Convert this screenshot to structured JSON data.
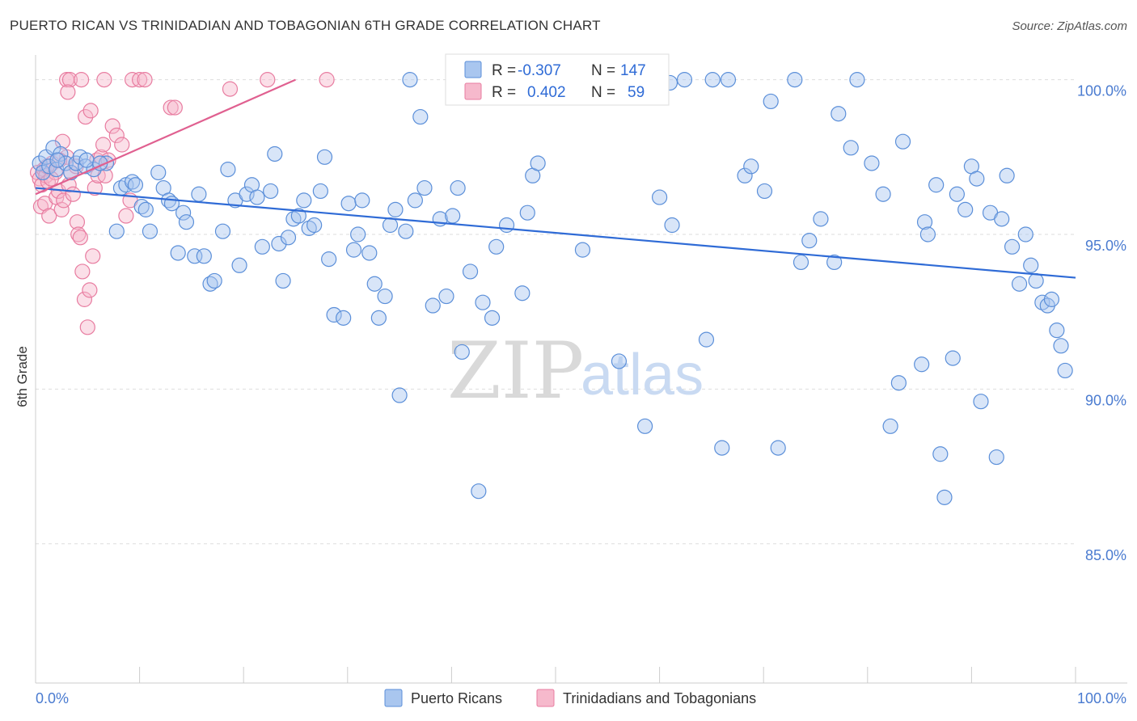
{
  "title": "PUERTO RICAN VS TRINIDADIAN AND TOBAGONIAN 6TH GRADE CORRELATION CHART",
  "source": "Source: ZipAtlas.com",
  "watermark": {
    "zip": "ZIP",
    "atlas": "atlas"
  },
  "colors": {
    "blue_fill": "#a9c6ef",
    "blue_stroke": "#5b8fd9",
    "blue_line": "#2f6bd6",
    "pink_fill": "#f6b9cc",
    "pink_stroke": "#e87ca0",
    "pink_line": "#e06090",
    "grid": "#dddddd",
    "tick_text": "#4a7bd0"
  },
  "legend": {
    "r_label": "R =",
    "n_label": "N =",
    "series": [
      {
        "r": "-0.307",
        "n": "147"
      },
      {
        "r": "0.402",
        "n": "59"
      }
    ]
  },
  "chart_data": {
    "type": "scatter",
    "title": "PUERTO RICAN VS TRINIDADIAN AND TOBAGONIAN 6TH GRADE CORRELATION CHART",
    "xlabel": "",
    "ylabel": "6th Grade",
    "xlim": [
      0,
      100
    ],
    "ylim": [
      80.5,
      100.8
    ],
    "y_ticks": [
      85,
      90,
      95,
      100
    ],
    "y_tick_labels": [
      "85.0%",
      "90.0%",
      "95.0%",
      "100.0%"
    ],
    "x_tick_labels": [
      "0.0%",
      "100.0%"
    ],
    "grid": true,
    "legend_position": "top-center",
    "series": [
      {
        "name": "Puerto Ricans",
        "color": "#5b8fd9",
        "trend": {
          "x": [
            0,
            100
          ],
          "y": [
            96.5,
            93.6
          ]
        },
        "points": [
          [
            0.4,
            97.3
          ],
          [
            0.7,
            97.0
          ],
          [
            1.0,
            97.5
          ],
          [
            1.3,
            97.2
          ],
          [
            1.7,
            97.8
          ],
          [
            2.0,
            97.1
          ],
          [
            2.4,
            97.6
          ],
          [
            2.9,
            97.3
          ],
          [
            3.4,
            97.0
          ],
          [
            3.9,
            97.3
          ],
          [
            4.3,
            97.5
          ],
          [
            4.8,
            97.2
          ],
          [
            5.6,
            97.1
          ],
          [
            6.8,
            97.3
          ],
          [
            7.8,
            95.1
          ],
          [
            8.2,
            96.5
          ],
          [
            8.7,
            96.6
          ],
          [
            9.3,
            96.7
          ],
          [
            9.6,
            96.6
          ],
          [
            10.2,
            95.9
          ],
          [
            10.6,
            95.8
          ],
          [
            11.0,
            95.1
          ],
          [
            11.8,
            97.0
          ],
          [
            12.3,
            96.5
          ],
          [
            12.8,
            96.1
          ],
          [
            13.1,
            96.0
          ],
          [
            13.7,
            94.4
          ],
          [
            14.2,
            95.7
          ],
          [
            14.5,
            95.4
          ],
          [
            15.3,
            94.3
          ],
          [
            15.7,
            96.3
          ],
          [
            16.2,
            94.3
          ],
          [
            16.8,
            93.4
          ],
          [
            17.2,
            93.5
          ],
          [
            18.0,
            95.1
          ],
          [
            18.5,
            97.1
          ],
          [
            19.2,
            96.1
          ],
          [
            19.6,
            94.0
          ],
          [
            20.3,
            96.3
          ],
          [
            20.8,
            96.6
          ],
          [
            21.3,
            96.2
          ],
          [
            21.8,
            94.6
          ],
          [
            22.6,
            96.4
          ],
          [
            23.0,
            97.6
          ],
          [
            23.4,
            94.7
          ],
          [
            23.8,
            93.5
          ],
          [
            24.3,
            94.9
          ],
          [
            24.8,
            95.5
          ],
          [
            25.3,
            95.6
          ],
          [
            25.8,
            96.1
          ],
          [
            26.3,
            95.2
          ],
          [
            26.8,
            95.3
          ],
          [
            27.4,
            96.4
          ],
          [
            27.8,
            97.5
          ],
          [
            28.2,
            94.2
          ],
          [
            28.7,
            92.4
          ],
          [
            29.6,
            92.3
          ],
          [
            30.1,
            96.0
          ],
          [
            30.6,
            94.5
          ],
          [
            31.0,
            95.0
          ],
          [
            31.4,
            96.1
          ],
          [
            32.1,
            94.4
          ],
          [
            32.6,
            93.4
          ],
          [
            33.0,
            92.3
          ],
          [
            33.6,
            93.0
          ],
          [
            34.1,
            95.3
          ],
          [
            34.6,
            95.8
          ],
          [
            35.0,
            89.8
          ],
          [
            35.6,
            95.1
          ],
          [
            36.0,
            100.0
          ],
          [
            36.5,
            96.1
          ],
          [
            37.0,
            98.8
          ],
          [
            37.4,
            96.5
          ],
          [
            38.2,
            92.7
          ],
          [
            38.9,
            95.5
          ],
          [
            39.5,
            93.0
          ],
          [
            40.1,
            95.6
          ],
          [
            40.6,
            96.5
          ],
          [
            41.0,
            91.2
          ],
          [
            41.8,
            93.8
          ],
          [
            42.6,
            86.7
          ],
          [
            43.0,
            92.8
          ],
          [
            43.9,
            92.3
          ],
          [
            44.3,
            94.6
          ],
          [
            45.3,
            95.3
          ],
          [
            46.8,
            93.1
          ],
          [
            47.3,
            95.7
          ],
          [
            47.8,
            96.9
          ],
          [
            48.3,
            97.3
          ],
          [
            49.0,
            100.0
          ],
          [
            50.3,
            100.0
          ],
          [
            51.8,
            99.8
          ],
          [
            52.6,
            94.5
          ],
          [
            53.4,
            100.0
          ],
          [
            55.3,
            100.0
          ],
          [
            56.1,
            90.9
          ],
          [
            57.0,
            100.0
          ],
          [
            58.0,
            100.0
          ],
          [
            58.6,
            88.8
          ],
          [
            60.0,
            96.2
          ],
          [
            61.0,
            99.9
          ],
          [
            61.2,
            95.3
          ],
          [
            62.4,
            100.0
          ],
          [
            64.5,
            91.6
          ],
          [
            65.1,
            100.0
          ],
          [
            66.0,
            88.1
          ],
          [
            66.6,
            100.0
          ],
          [
            68.2,
            96.9
          ],
          [
            68.8,
            97.2
          ],
          [
            70.1,
            96.4
          ],
          [
            70.7,
            99.3
          ],
          [
            71.4,
            88.1
          ],
          [
            73.0,
            100.0
          ],
          [
            73.6,
            94.1
          ],
          [
            74.4,
            94.8
          ],
          [
            75.5,
            95.5
          ],
          [
            76.8,
            94.1
          ],
          [
            77.2,
            98.9
          ],
          [
            78.4,
            97.8
          ],
          [
            79.0,
            100.0
          ],
          [
            80.4,
            97.3
          ],
          [
            81.5,
            96.3
          ],
          [
            82.2,
            88.8
          ],
          [
            83.0,
            90.2
          ],
          [
            83.4,
            98.0
          ],
          [
            85.2,
            90.8
          ],
          [
            85.5,
            95.4
          ],
          [
            85.8,
            95.0
          ],
          [
            86.6,
            96.6
          ],
          [
            87.0,
            87.9
          ],
          [
            87.4,
            86.5
          ],
          [
            88.2,
            91.0
          ],
          [
            88.6,
            96.3
          ],
          [
            89.4,
            95.8
          ],
          [
            90.0,
            97.2
          ],
          [
            90.5,
            96.8
          ],
          [
            90.9,
            89.6
          ],
          [
            91.8,
            95.7
          ],
          [
            92.4,
            87.8
          ],
          [
            92.9,
            95.5
          ],
          [
            93.4,
            96.9
          ],
          [
            93.9,
            94.6
          ],
          [
            94.6,
            93.4
          ],
          [
            95.2,
            95.0
          ],
          [
            95.7,
            94.0
          ],
          [
            96.2,
            93.5
          ],
          [
            96.8,
            92.8
          ],
          [
            97.3,
            92.7
          ],
          [
            97.7,
            92.9
          ],
          [
            98.2,
            91.9
          ],
          [
            98.6,
            91.4
          ],
          [
            99.0,
            90.6
          ],
          [
            2.1,
            97.4
          ],
          [
            4.9,
            97.4
          ],
          [
            6.2,
            97.3
          ]
        ]
      },
      {
        "name": "Trinidadians and Tobagonians",
        "color": "#e87ca0",
        "trend": {
          "x": [
            0,
            25
          ],
          "y": [
            96.3,
            100.0
          ]
        },
        "points": [
          [
            0.2,
            97.0
          ],
          [
            0.4,
            96.8
          ],
          [
            0.6,
            96.6
          ],
          [
            0.8,
            97.1
          ],
          [
            1.0,
            96.9
          ],
          [
            1.2,
            96.7
          ],
          [
            0.5,
            95.9
          ],
          [
            0.9,
            96.0
          ],
          [
            1.3,
            95.6
          ],
          [
            1.6,
            97.3
          ],
          [
            1.9,
            97.0
          ],
          [
            2.0,
            96.2
          ],
          [
            2.2,
            96.4
          ],
          [
            2.5,
            95.8
          ],
          [
            2.7,
            96.1
          ],
          [
            3.0,
            97.5
          ],
          [
            3.2,
            96.6
          ],
          [
            3.4,
            97.0
          ],
          [
            3.6,
            96.3
          ],
          [
            3.9,
            97.2
          ],
          [
            4.0,
            95.4
          ],
          [
            4.1,
            95.0
          ],
          [
            4.3,
            94.9
          ],
          [
            4.5,
            93.8
          ],
          [
            4.7,
            92.9
          ],
          [
            5.0,
            92.0
          ],
          [
            5.2,
            93.2
          ],
          [
            5.5,
            94.3
          ],
          [
            5.7,
            96.5
          ],
          [
            5.9,
            97.4
          ],
          [
            6.0,
            96.9
          ],
          [
            6.3,
            97.5
          ],
          [
            6.5,
            97.9
          ],
          [
            6.7,
            96.9
          ],
          [
            7.0,
            97.4
          ],
          [
            7.4,
            98.5
          ],
          [
            7.8,
            98.2
          ],
          [
            8.3,
            97.9
          ],
          [
            8.7,
            95.6
          ],
          [
            9.1,
            96.1
          ],
          [
            3.0,
            100.0
          ],
          [
            3.3,
            100.0
          ],
          [
            3.1,
            99.6
          ],
          [
            4.4,
            100.0
          ],
          [
            6.6,
            100.0
          ],
          [
            9.3,
            100.0
          ],
          [
            10.0,
            100.0
          ],
          [
            10.5,
            100.0
          ],
          [
            13.0,
            99.1
          ],
          [
            13.4,
            99.1
          ],
          [
            18.7,
            99.7
          ],
          [
            22.3,
            100.0
          ],
          [
            28.0,
            100.0
          ],
          [
            1.1,
            97.2
          ],
          [
            1.5,
            96.8
          ],
          [
            2.3,
            97.4
          ],
          [
            2.6,
            98.0
          ],
          [
            4.8,
            98.8
          ],
          [
            5.3,
            99.0
          ]
        ]
      }
    ]
  }
}
